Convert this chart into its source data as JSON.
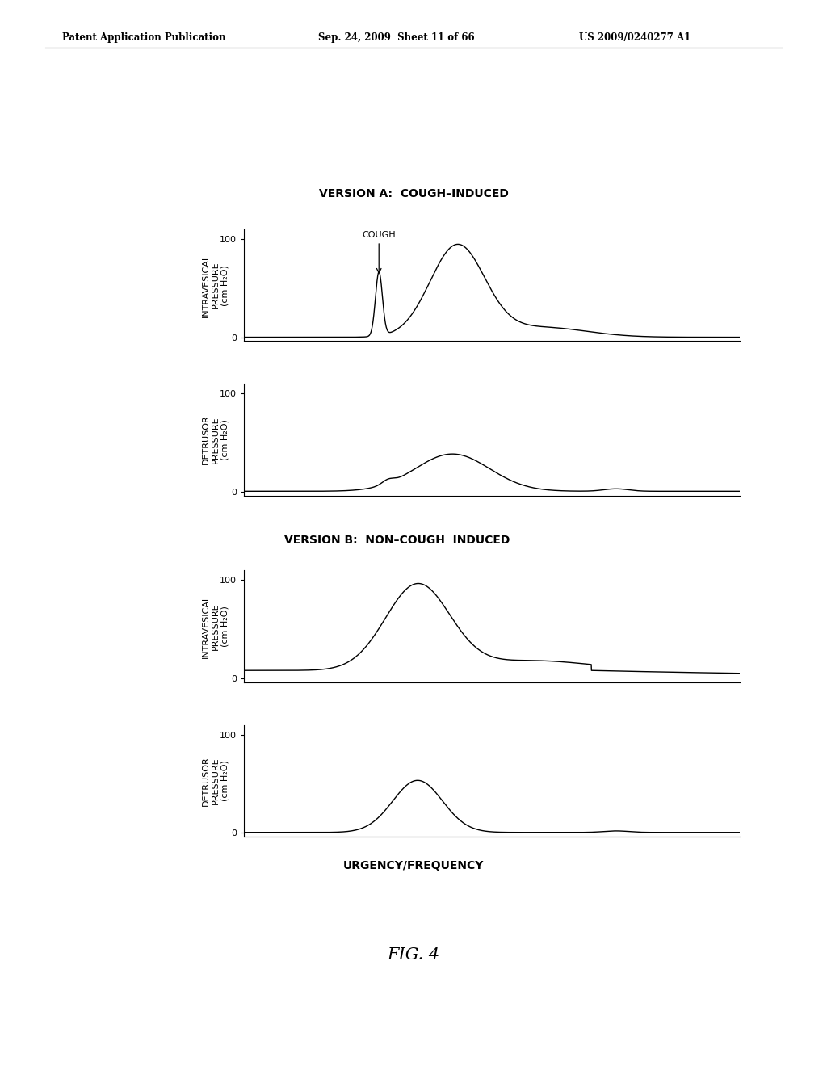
{
  "header_left": "Patent Application Publication",
  "header_mid": "Sep. 24, 2009  Sheet 11 of 66",
  "header_right": "US 2009/0240277 A1",
  "version_a_title": "VERSION A:  COUGH–INDUCED",
  "version_b_title": "VERSION B:  NON–COUGH  INDUCED",
  "cough_label": "COUGH",
  "ylabel_intravesical": "INTRAVESICAL\nPRESSURE\n(cm H₂O)",
  "ylabel_detrusor": "DETRUSOR\nPRESSURE\n(cm H₂O)",
  "bottom_label": "URGENCY/FREQUENCY",
  "fig_label": "FIG. 4",
  "background_color": "#ffffff",
  "line_color": "#000000",
  "axis_color": "#000000",
  "font_size_header": 8.5,
  "font_size_title": 10,
  "font_size_label": 8,
  "font_size_bottom": 10,
  "font_size_fig": 15
}
